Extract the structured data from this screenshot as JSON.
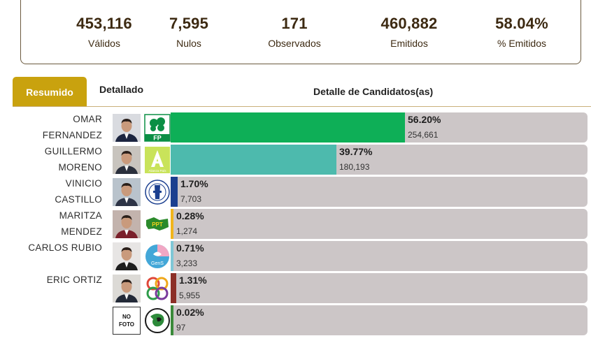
{
  "summary": {
    "validos": {
      "value": "453,116",
      "label": "Válidos"
    },
    "nulos": {
      "value": "7,595",
      "label": "Nulos"
    },
    "observados": {
      "value": "171",
      "label": "Observados"
    },
    "emitidos": {
      "value": "460,882",
      "label": "Emitidos"
    },
    "pct_emitidos": {
      "value": "58.04%",
      "label": "% Emitidos"
    }
  },
  "tabs": {
    "resumen": "Resumido",
    "detallado": "Detallado",
    "title": "Detalle de Candidatos(as)"
  },
  "candidates": [
    {
      "line1": "OMAR",
      "line2": "FERNANDEZ",
      "party": "FP",
      "pct": "56.20%",
      "share": 56.2,
      "votes": "254,661",
      "color": "#0eaf57",
      "photo": "person",
      "photo_bg": "#d9dbe0",
      "suit": "#1c2540",
      "logo": "fp-logo"
    },
    {
      "line1": "GUILLERMO",
      "line2": "MORENO",
      "party": "Alianza País",
      "pct": "39.77%",
      "share": 39.77,
      "votes": "180,193",
      "color": "#4dbaad",
      "photo": "person",
      "photo_bg": "#c8c4be",
      "suit": "#2a2f3c",
      "logo": "ap-logo"
    },
    {
      "line1": "VINICIO",
      "line2": "CASTILLO",
      "party": "",
      "pct": "1.70%",
      "share": 1.7,
      "votes": "7,703",
      "color": "#1b3f8f",
      "photo": "person",
      "photo_bg": "#b9c3cc",
      "suit": "#2d3446",
      "logo": "fnp-logo"
    },
    {
      "line1": "MARITZA",
      "line2": "MENDEZ",
      "party": "PPT",
      "pct": "0.28%",
      "share": 0.28,
      "votes": "1,274",
      "color": "#f1b51b",
      "photo": "person",
      "photo_bg": "#c3b3ad",
      "suit": "#7a1f2a",
      "logo": "ppt-logo"
    },
    {
      "line1": "CARLOS RUBIO",
      "line2": "",
      "party": "GenS",
      "pct": "0.71%",
      "share": 0.71,
      "votes": "3,233",
      "color": "#7fc7d6",
      "photo": "person",
      "photo_bg": "#e7e5e4",
      "suit": "#1e1e1e",
      "logo": "gens-logo"
    },
    {
      "line1": "ERIC ORTIZ",
      "line2": "",
      "party": "",
      "pct": "1.31%",
      "share": 1.31,
      "votes": "5,955",
      "color": "#8c2f27",
      "photo": "person",
      "photo_bg": "#dcdad6",
      "suit": "#232a38",
      "logo": "rings-logo"
    },
    {
      "line1": "",
      "line2": "",
      "party": "",
      "pct": "0.02%",
      "share": 0.02,
      "votes": "97",
      "color": "#3a8a3a",
      "photo": "nofoto",
      "photo_label": "NO FOTO",
      "photo_bg": "#ffffff",
      "suit": "#000000",
      "logo": "globe-logo"
    }
  ]
}
